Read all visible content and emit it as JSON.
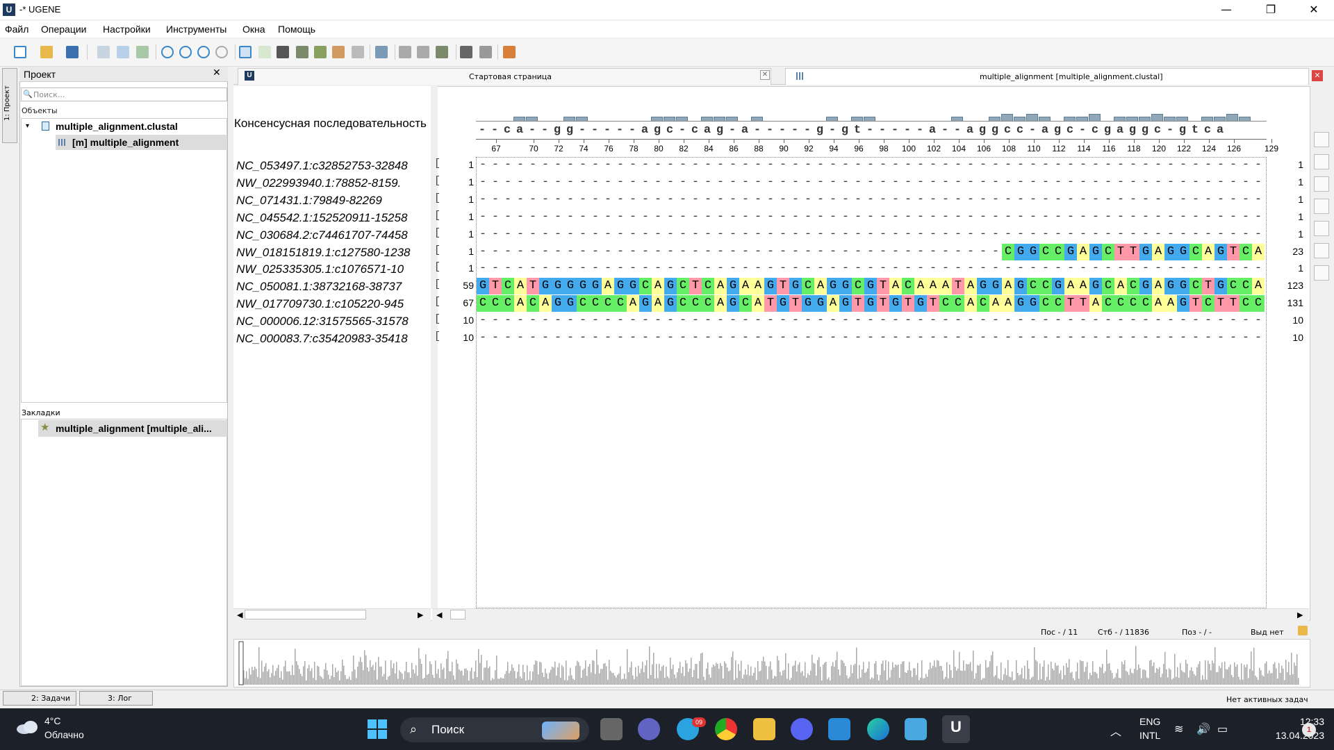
{
  "window": {
    "title": "-* UGENE",
    "logo_letter": "U",
    "minimize": "—",
    "restore": "❐",
    "close": "✕"
  },
  "menu": [
    "Файл",
    "Операции",
    "Настройки",
    "Инструменты",
    "Окна",
    "Помощь"
  ],
  "left_strip": {
    "label": "1: Проект"
  },
  "project": {
    "title": "Проект",
    "close": "✕",
    "search_placeholder": "Поиск...",
    "objects_label": "Объекты",
    "tree_file": "multiple_alignment.clustal",
    "tree_item": "[m] multiple_alignment",
    "bookmarks_label": "Закладки",
    "bookmark_item": "multiple_alignment [multiple_ali..."
  },
  "tabs": {
    "start_page": "Стартовая страница",
    "active": "multiple_alignment [multiple_alignment.clustal]",
    "close_glyph": "✕"
  },
  "alignment": {
    "consensus_label": "Консенсусная последовательность",
    "consensus": "--ca--gg-----agc-cag-a-----g-gt-----a--aggcc-agc-cgaggc-gtca",
    "histogram": [
      0,
      0,
      0,
      0.5,
      0.5,
      0,
      0,
      0.5,
      0.5,
      0,
      0,
      0,
      0,
      0,
      0.5,
      0.5,
      0.5,
      0,
      0.5,
      0.5,
      0.5,
      0,
      0.5,
      0,
      0,
      0,
      0,
      0,
      0.5,
      0,
      0.5,
      0.5,
      0,
      0,
      0,
      0,
      0,
      0,
      0.5,
      0,
      0,
      0.5,
      0.8,
      0.5,
      0.8,
      0.5,
      0,
      0.5,
      0.5,
      0.8,
      0,
      0.5,
      0.5,
      0.5,
      0.8,
      0.5,
      0.5,
      0,
      0.5,
      0.5,
      0.8,
      0.5
    ],
    "ruler_labels": [
      "67",
      "70",
      "72",
      "74",
      "76",
      "78",
      "80",
      "82",
      "84",
      "86",
      "88",
      "90",
      "92",
      "94",
      "96",
      "98",
      "100",
      "102",
      "104",
      "106",
      "108",
      "110",
      "112",
      "114",
      "116",
      "118",
      "120",
      "122",
      "124",
      "126",
      "129"
    ],
    "rows": [
      {
        "name": "NC_053497.1:c32852753-32848",
        "start": "1",
        "end": "1",
        "seq": "---------------------------------------------------------------"
      },
      {
        "name": "NW_022993940.1:78852-8159.",
        "start": "1",
        "end": "1",
        "seq": "---------------------------------------------------------------"
      },
      {
        "name": "NC_071431.1:79849-82269",
        "start": "1",
        "end": "1",
        "seq": "---------------------------------------------------------------"
      },
      {
        "name": "NC_045542.1:152520911-15258",
        "start": "1",
        "end": "1",
        "seq": "---------------------------------------------------------------"
      },
      {
        "name": "NC_030684.2:c74461707-74458",
        "start": "1",
        "end": "1",
        "seq": "---------------------------------------------------------------"
      },
      {
        "name": "NW_018151819.1:c127580-1238",
        "start": "1",
        "end": "23",
        "seq": "------------------------------------------CGGCCGAGCTTGAGGCAGTCA"
      },
      {
        "name": "NW_025335305.1:c1076571-10",
        "start": "1",
        "end": "1",
        "seq": "---------------------------------------------------------------"
      },
      {
        "name": "NC_050081.1:38732168-38737",
        "start": "59",
        "end": "123",
        "seq": "GTCATGGGGGAGGCAGCTCAGAAGTGCAGGCGTACAAATAGGAGCCGAAGCACGAGGCTGCCA"
      },
      {
        "name": "NW_017709730.1:c105220-945",
        "start": "67",
        "end": "131",
        "seq": "CCCACAGGCCCCAGAGCCCAGCATGTGGAGTGTGTGTCCACAAGGCCTTACCCCAAGTCTTCC"
      },
      {
        "name": "NC_000006.12:31575565-31578",
        "start": "10",
        "end": "10",
        "seq": "---------------------------------------------------------------"
      },
      {
        "name": "NC_000083.7:c35420983-35418",
        "start": "10",
        "end": "10",
        "seq": "---------------------------------------------------------------"
      }
    ],
    "bracket": "["
  },
  "status": {
    "pos": "Пос - / 11",
    "col": "Стб - / 11836",
    "poz": "Поз - / -",
    "sel": "Выд нет"
  },
  "bottom_tabs": {
    "tasks": "2: Задачи",
    "log": "3: Лог",
    "no_tasks": "Нет активных задач"
  },
  "taskbar": {
    "temp": "4°C",
    "weather": "Облачно",
    "search": "Поиск",
    "lang1": "ENG",
    "lang2": "INTL",
    "time": "12:33",
    "date": "13.04.2023",
    "notifications": "1",
    "telegram_badge": "09",
    "ugene_letter": "U"
  },
  "colors": {
    "A": "#ffff99",
    "C": "#66ee66",
    "G": "#44aaee",
    "T": "#ff99aa",
    "accent": "#1e3a5f"
  }
}
